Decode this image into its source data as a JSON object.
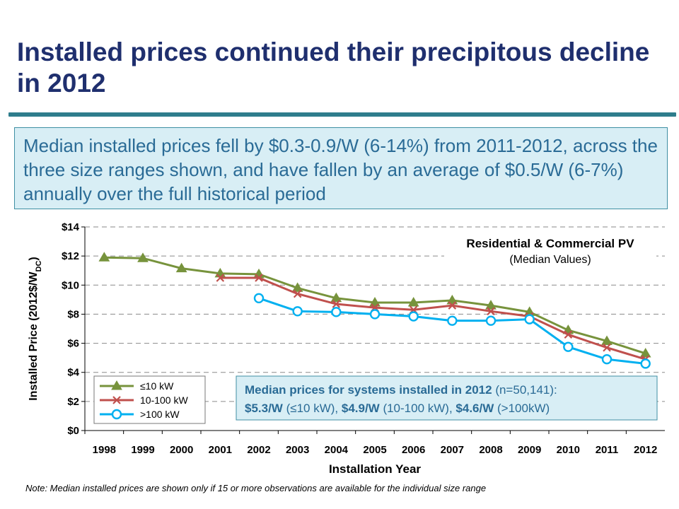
{
  "slide": {
    "title": "Installed prices continued their precipitous decline in 2012",
    "callout": "Median installed prices fell by $0.3-0.9/W (6-14%) from 2011-2012, across the three size ranges shown, and have fallen by an average of $0.5/W (6-7%) annually over the full historical period",
    "footnote": "Note: Median installed prices are shown only if 15 or more observations are available for the individual size range"
  },
  "chart_data": {
    "type": "line",
    "title": "Residential & Commercial PV",
    "subtitle": "(Median Values)",
    "xlabel": "Installation Year",
    "ylabel_main": "Installed Price (2012$/W",
    "ylabel_sub": "DC",
    "ylabel_close": ")",
    "categories": [
      "1998",
      "1999",
      "2000",
      "2001",
      "2002",
      "2003",
      "2004",
      "2005",
      "2006",
      "2007",
      "2008",
      "2009",
      "2010",
      "2011",
      "2012"
    ],
    "yticks": [
      0,
      2,
      4,
      6,
      8,
      10,
      12,
      14
    ],
    "ytick_labels": [
      "$0",
      "$2",
      "$4",
      "$6",
      "$8",
      "$10",
      "$12",
      "$14"
    ],
    "ylim": [
      0,
      14
    ],
    "grid": "horizontal dashed",
    "legend_position": "bottom-left",
    "series": [
      {
        "name": "≤10 kW",
        "color": "#77933c",
        "marker": "triangle",
        "values": [
          11.9,
          11.85,
          11.15,
          10.8,
          10.75,
          9.8,
          9.1,
          8.8,
          8.8,
          8.95,
          8.6,
          8.15,
          6.9,
          6.15,
          5.3
        ]
      },
      {
        "name": "10-100 kW",
        "color": "#c0504d",
        "marker": "x",
        "values": [
          null,
          null,
          null,
          10.5,
          10.5,
          9.4,
          8.7,
          8.45,
          8.3,
          8.6,
          8.2,
          7.85,
          6.6,
          5.7,
          4.9
        ]
      },
      {
        "name": ">100 kW",
        "color": "#00b0f0",
        "marker": "circle",
        "values": [
          null,
          null,
          null,
          null,
          9.1,
          8.2,
          8.15,
          8.0,
          7.85,
          7.55,
          7.55,
          7.65,
          5.75,
          4.9,
          4.6
        ]
      }
    ],
    "annotation": {
      "line1_bold": "Median prices for systems installed in 2012",
      "line1_rest": " (n=50,141):",
      "line2_parts": [
        {
          "text": "$5.3/W",
          "bold": true
        },
        {
          "text": " (≤10 kW), ",
          "bold": false
        },
        {
          "text": "$4.9/W",
          "bold": true
        },
        {
          "text": " (10-100 kW), ",
          "bold": false
        },
        {
          "text": "$4.6/W",
          "bold": true
        },
        {
          "text": " (>100kW)",
          "bold": false
        }
      ]
    }
  }
}
